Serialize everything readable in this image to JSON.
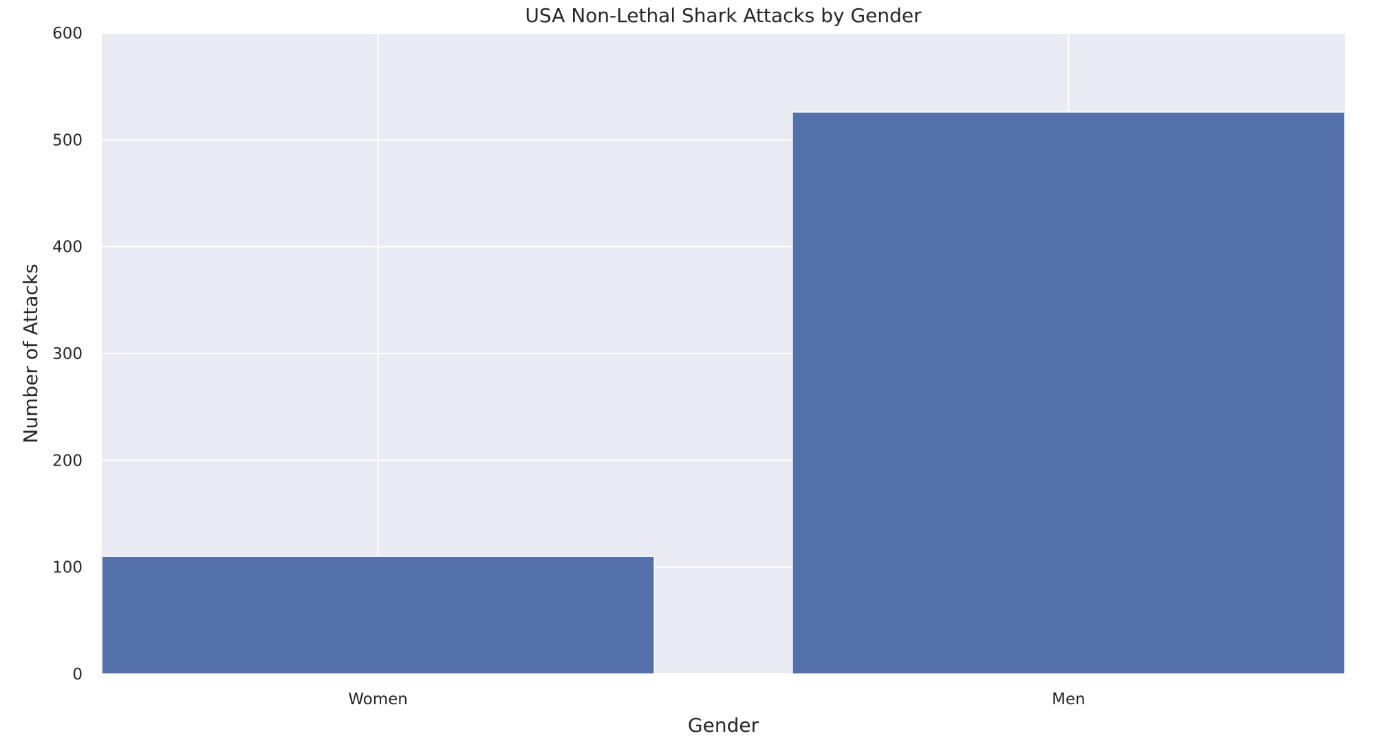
{
  "chart_data": {
    "type": "bar",
    "title": "USA Non-Lethal Shark Attacks by Gender",
    "xlabel": "Gender",
    "ylabel": "Number of Attacks",
    "categories": [
      "Women",
      "Men"
    ],
    "values": [
      110,
      526
    ],
    "ylim": [
      0,
      600
    ],
    "yticks": [
      "0",
      "100",
      "200",
      "300",
      "400",
      "500",
      "600"
    ],
    "grid": true,
    "legend": "none",
    "colors": {
      "bar": "#5471ab",
      "plot_background": "#eaeaf2",
      "grid": "#ffffff",
      "text": "#262626"
    }
  }
}
